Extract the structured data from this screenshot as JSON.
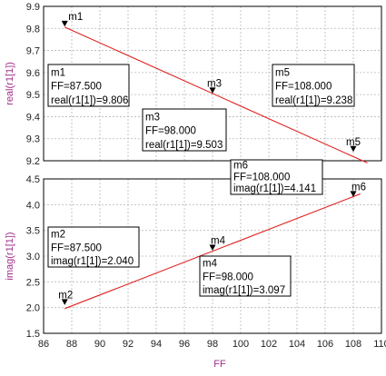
{
  "x_axis_title": "FF",
  "chart_data": [
    {
      "type": "line",
      "ylabel": "real(r1[1])",
      "xlim": [
        86,
        110
      ],
      "ylim": [
        9.2,
        9.9
      ],
      "x_ticks": [
        "86",
        "88",
        "90",
        "92",
        "94",
        "96",
        "98",
        "100",
        "102",
        "104",
        "106",
        "108",
        "110"
      ],
      "y_ticks": [
        "9.2",
        "9.3",
        "9.4",
        "9.5",
        "9.6",
        "9.7",
        "9.8",
        "9.9"
      ],
      "grid": true,
      "series": [
        {
          "color": "#e02020",
          "x": [
            87.5,
            109.0
          ],
          "y": [
            9.806,
            9.19
          ]
        }
      ],
      "markers": [
        {
          "name": "m1",
          "x": 87.5,
          "y": 9.806
        },
        {
          "name": "m3",
          "x": 98.0,
          "y": 9.503
        },
        {
          "name": "m5",
          "x": 108.0,
          "y": 9.238
        }
      ],
      "readouts": [
        {
          "lines": [
            "m1",
            "FF=87.500",
            "real(r1[1])=9.806"
          ]
        },
        {
          "lines": [
            "m3",
            "FF=98.000",
            "real(r1[1])=9.503"
          ]
        },
        {
          "lines": [
            "m5",
            "FF=108.000",
            "real(r1[1])=9.238"
          ]
        }
      ]
    },
    {
      "type": "line",
      "ylabel": "imag(r1[1])",
      "xlim": [
        86,
        110
      ],
      "ylim": [
        1.5,
        4.5
      ],
      "x_ticks": [
        "86",
        "88",
        "90",
        "92",
        "94",
        "96",
        "98",
        "100",
        "102",
        "104",
        "106",
        "108",
        "110"
      ],
      "y_ticks": [
        "1.5",
        "2.0",
        "2.5",
        "3.0",
        "3.5",
        "4.0",
        "4.5"
      ],
      "grid": true,
      "series": [
        {
          "color": "#e02020",
          "x": [
            87.5,
            108.5
          ],
          "y": [
            1.98,
            4.21
          ]
        }
      ],
      "markers": [
        {
          "name": "m2",
          "x": 87.5,
          "y": 2.04
        },
        {
          "name": "m4",
          "x": 98.0,
          "y": 3.097
        },
        {
          "name": "m6",
          "x": 108.0,
          "y": 4.141
        }
      ],
      "readouts": [
        {
          "lines": [
            "m2",
            "FF=87.500",
            "imag(r1[1])=2.040"
          ]
        },
        {
          "lines": [
            "m4",
            "FF=98.000",
            "imag(r1[1])=3.097"
          ]
        },
        {
          "lines": [
            "m6",
            "FF=108.000",
            "imag(r1[1])=4.141"
          ]
        }
      ]
    }
  ]
}
